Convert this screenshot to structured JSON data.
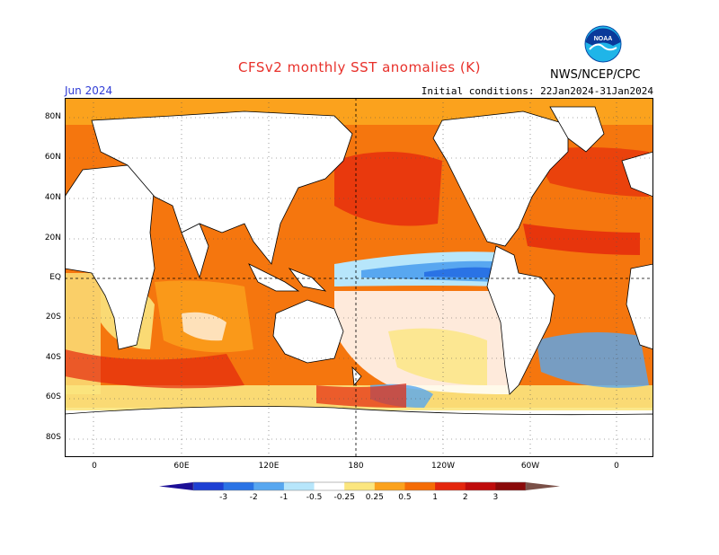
{
  "title": "CFSv2 monthly SST anomalies (K)",
  "agency": "NWS/NCEP/CPC",
  "logo_text": "NOAA",
  "forecast_month": "Jun 2024",
  "initial_conditions": "Initial conditions: 22Jan2024-31Jan2024",
  "lat_labels": [
    "80N",
    "60N",
    "40N",
    "20N",
    "EQ",
    "20S",
    "40S",
    "60S",
    "80S"
  ],
  "lon_labels": [
    "0",
    "60E",
    "120E",
    "180",
    "120W",
    "60W",
    "0"
  ],
  "colorbar": {
    "tick_labels": [
      "-3",
      "-2",
      "-1",
      "-0.5",
      "-0.25",
      "0.25",
      "0.5",
      "1",
      "2",
      "3"
    ],
    "colors": [
      "#1c0f96",
      "#1d3fd3",
      "#2a73e5",
      "#58a7f0",
      "#b7e6fb",
      "#ffffff",
      "#fbe67f",
      "#fba21d",
      "#f56c06",
      "#e4260d",
      "#bf0c0c",
      "#8a0a0a",
      "#7a5048"
    ]
  },
  "colors": {
    "land": "#ffffff",
    "warm": "#f06a0f",
    "cool": "#2a73e5"
  }
}
